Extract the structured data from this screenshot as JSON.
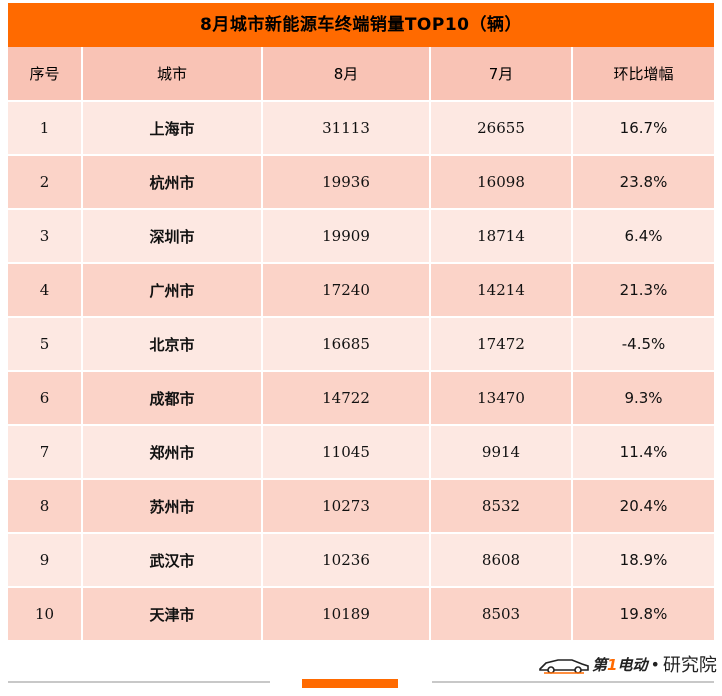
{
  "title": "8月城市新能源车终端销量TOP10（辆）",
  "table": {
    "headers": [
      "序号",
      "城市",
      "8月",
      "7月",
      "环比增幅"
    ],
    "rows": [
      [
        "1",
        "上海市",
        "31113",
        "26655",
        "16.7%"
      ],
      [
        "2",
        "杭州市",
        "19936",
        "16098",
        "23.8%"
      ],
      [
        "3",
        "深圳市",
        "19909",
        "18714",
        "6.4%"
      ],
      [
        "4",
        "广州市",
        "17240",
        "14214",
        "21.3%"
      ],
      [
        "5",
        "北京市",
        "16685",
        "17472",
        "-4.5%"
      ],
      [
        "6",
        "成都市",
        "14722",
        "13470",
        "9.3%"
      ],
      [
        "7",
        "郑州市",
        "11045",
        "9914",
        "11.4%"
      ],
      [
        "8",
        "苏州市",
        "10273",
        "8532",
        "20.4%"
      ],
      [
        "9",
        "武汉市",
        "10236",
        "8608",
        "18.9%"
      ],
      [
        "10",
        "天津市",
        "10189",
        "8503",
        "19.8%"
      ]
    ]
  },
  "logo": {
    "brand_prefix": "第",
    "brand_accent": "1",
    "brand_suffix": "电动",
    "separator": "•",
    "suffix": "研究院",
    "car_icon": "car-icon"
  },
  "colors": {
    "title_bg": "#ff6a00",
    "header_bg": "#f9c3b5",
    "row_light": "#fde8e2",
    "row_dark": "#fbd3c8"
  }
}
